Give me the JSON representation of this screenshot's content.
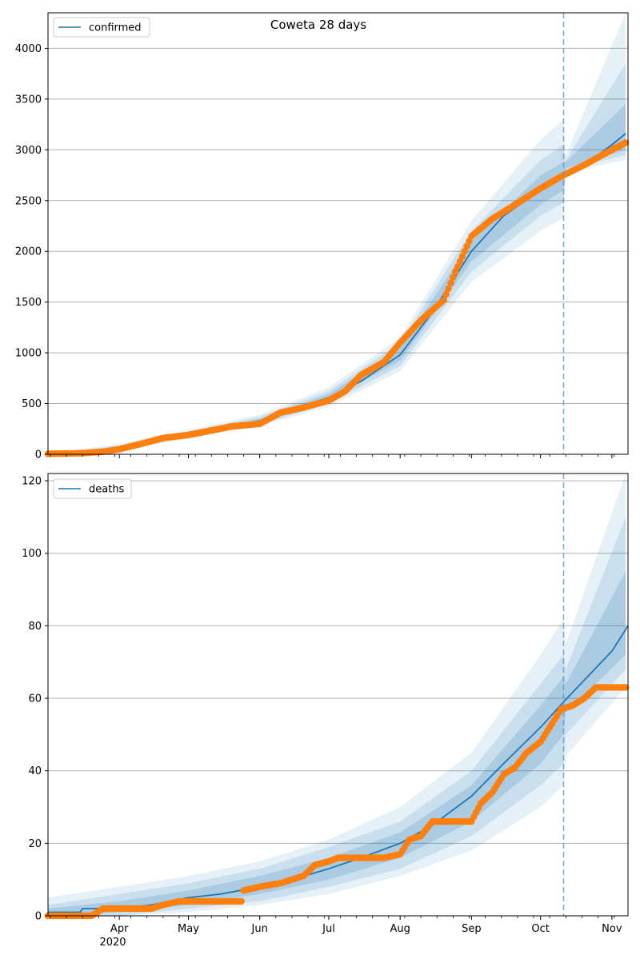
{
  "chart_data": [
    {
      "type": "line",
      "title": "Coweta 28 days",
      "xlabel": "",
      "ylabel": "",
      "ylim": [
        0,
        4350
      ],
      "yticks": [
        0,
        500,
        1000,
        1500,
        2000,
        2500,
        3000,
        3500,
        4000
      ],
      "grid": "y",
      "legend_position": "top-left",
      "legend": [
        "confirmed"
      ],
      "forecast_start": "2020-10-11",
      "series": [
        {
          "name": "confirmed",
          "kind": "model-line",
          "color": "#1f77b4",
          "points": [
            [
              "2020-03-01",
              0
            ],
            [
              "2020-03-20",
              15
            ],
            [
              "2020-04-01",
              60
            ],
            [
              "2020-04-15",
              140
            ],
            [
              "2020-05-01",
              195
            ],
            [
              "2020-05-15",
              260
            ],
            [
              "2020-06-01",
              330
            ],
            [
              "2020-06-15",
              440
            ],
            [
              "2020-07-01",
              560
            ],
            [
              "2020-07-15",
              720
            ],
            [
              "2020-08-01",
              980
            ],
            [
              "2020-08-15",
              1400
            ],
            [
              "2020-09-01",
              2000
            ],
            [
              "2020-09-15",
              2350
            ],
            [
              "2020-10-01",
              2600
            ],
            [
              "2020-10-11",
              2740
            ],
            [
              "2020-10-20",
              2850
            ],
            [
              "2020-11-01",
              3050
            ],
            [
              "2020-11-07",
              3160
            ]
          ]
        },
        {
          "name": "",
          "kind": "observed-dots",
          "color": "#ff7f0e",
          "points": [
            [
              "2020-03-01",
              5
            ],
            [
              "2020-03-15",
              10
            ],
            [
              "2020-03-25",
              25
            ],
            [
              "2020-04-01",
              50
            ],
            [
              "2020-04-10",
              100
            ],
            [
              "2020-04-20",
              160
            ],
            [
              "2020-05-01",
              190
            ],
            [
              "2020-05-10",
              230
            ],
            [
              "2020-05-20",
              275
            ],
            [
              "2020-06-01",
              300
            ],
            [
              "2020-06-10",
              410
            ],
            [
              "2020-06-20",
              460
            ],
            [
              "2020-07-01",
              530
            ],
            [
              "2020-07-08",
              620
            ],
            [
              "2020-07-15",
              780
            ],
            [
              "2020-07-25",
              910
            ],
            [
              "2020-08-01",
              1100
            ],
            [
              "2020-08-10",
              1320
            ],
            [
              "2020-08-20",
              1520
            ],
            [
              "2020-08-25",
              1800
            ],
            [
              "2020-09-01",
              2150
            ],
            [
              "2020-09-10",
              2320
            ],
            [
              "2020-09-20",
              2460
            ],
            [
              "2020-10-01",
              2620
            ],
            [
              "2020-10-11",
              2750
            ],
            [
              "2020-10-20",
              2850
            ],
            [
              "2020-11-01",
              3000
            ],
            [
              "2020-11-07",
              3070
            ]
          ]
        }
      ],
      "bands": [
        {
          "lower": [
            [
              "2020-03-01",
              0
            ],
            [
              "2020-04-01",
              30
            ],
            [
              "2020-05-01",
              160
            ],
            [
              "2020-06-01",
              280
            ],
            [
              "2020-07-01",
              470
            ],
            [
              "2020-08-01",
              820
            ],
            [
              "2020-09-01",
              1700
            ],
            [
              "2020-10-01",
              2200
            ],
            [
              "2020-10-11",
              2330
            ],
            [
              "2020-10-12",
              2780
            ],
            [
              "2020-11-07",
              2900
            ]
          ],
          "upper": [
            [
              "2020-03-01",
              10
            ],
            [
              "2020-04-01",
              100
            ],
            [
              "2020-05-01",
              240
            ],
            [
              "2020-06-01",
              390
            ],
            [
              "2020-07-01",
              660
            ],
            [
              "2020-08-01",
              1150
            ],
            [
              "2020-09-01",
              2300
            ],
            [
              "2020-10-01",
              3100
            ],
            [
              "2020-10-11",
              3300
            ],
            [
              "2020-10-12",
              2950
            ],
            [
              "2020-11-07",
              4350
            ]
          ]
        },
        {
          "lower": [
            [
              "2020-03-01",
              0
            ],
            [
              "2020-04-01",
              40
            ],
            [
              "2020-05-01",
              170
            ],
            [
              "2020-06-01",
              295
            ],
            [
              "2020-07-01",
              500
            ],
            [
              "2020-08-01",
              870
            ],
            [
              "2020-09-01",
              1800
            ],
            [
              "2020-10-01",
              2350
            ],
            [
              "2020-10-11",
              2480
            ],
            [
              "2020-10-12",
              2800
            ],
            [
              "2020-11-07",
              2950
            ]
          ],
          "upper": [
            [
              "2020-03-01",
              6
            ],
            [
              "2020-04-01",
              85
            ],
            [
              "2020-05-01",
              225
            ],
            [
              "2020-06-01",
              370
            ],
            [
              "2020-07-01",
              625
            ],
            [
              "2020-08-01",
              1100
            ],
            [
              "2020-09-01",
              2200
            ],
            [
              "2020-10-01",
              2900
            ],
            [
              "2020-10-11",
              3050
            ],
            [
              "2020-10-12",
              2900
            ],
            [
              "2020-11-07",
              3850
            ]
          ]
        },
        {
          "lower": [
            [
              "2020-03-01",
              0
            ],
            [
              "2020-04-01",
              48
            ],
            [
              "2020-05-01",
              180
            ],
            [
              "2020-06-01",
              310
            ],
            [
              "2020-07-01",
              530
            ],
            [
              "2020-08-01",
              920
            ],
            [
              "2020-09-01",
              1900
            ],
            [
              "2020-10-01",
              2460
            ],
            [
              "2020-10-11",
              2600
            ],
            [
              "2020-10-12",
              2820
            ],
            [
              "2020-11-07",
              3000
            ]
          ],
          "upper": [
            [
              "2020-03-01",
              3
            ],
            [
              "2020-04-01",
              72
            ],
            [
              "2020-05-01",
              210
            ],
            [
              "2020-06-01",
              350
            ],
            [
              "2020-07-01",
              595
            ],
            [
              "2020-08-01",
              1050
            ],
            [
              "2020-09-01",
              2100
            ],
            [
              "2020-10-01",
              2750
            ],
            [
              "2020-10-11",
              2880
            ],
            [
              "2020-10-12",
              2880
            ],
            [
              "2020-11-07",
              3450
            ]
          ]
        }
      ]
    },
    {
      "type": "line",
      "title": "",
      "xlabel": "",
      "ylabel": "",
      "ylim": [
        0,
        122
      ],
      "yticks": [
        0,
        20,
        40,
        60,
        80,
        100,
        120
      ],
      "x_tick_labels": [
        "Apr",
        "May",
        "Jun",
        "Jul",
        "Aug",
        "Sep",
        "Oct",
        "Nov"
      ],
      "x_tick_dates": [
        "2020-04-01",
        "2020-05-01",
        "2020-06-01",
        "2020-07-01",
        "2020-08-01",
        "2020-09-01",
        "2020-10-01",
        "2020-11-01"
      ],
      "x_year_label": "2020",
      "xlim": [
        "2020-03-01",
        "2020-11-08"
      ],
      "grid": "y",
      "legend_position": "top-left",
      "legend": [
        "deaths"
      ],
      "forecast_start": "2020-10-11",
      "series": [
        {
          "name": "deaths",
          "kind": "model-line",
          "color": "#1f77b4",
          "points": [
            [
              "2020-03-01",
              1
            ],
            [
              "2020-03-15",
              1
            ],
            [
              "2020-03-16",
              2
            ],
            [
              "2020-04-01",
              2
            ],
            [
              "2020-04-15",
              3
            ],
            [
              "2020-05-01",
              5
            ],
            [
              "2020-05-15",
              6
            ],
            [
              "2020-06-01",
              8
            ],
            [
              "2020-06-15",
              10
            ],
            [
              "2020-07-01",
              13
            ],
            [
              "2020-07-15",
              16
            ],
            [
              "2020-08-01",
              20
            ],
            [
              "2020-08-15",
              25
            ],
            [
              "2020-09-01",
              33
            ],
            [
              "2020-09-15",
              42
            ],
            [
              "2020-10-01",
              52
            ],
            [
              "2020-10-11",
              59
            ],
            [
              "2020-10-20",
              65
            ],
            [
              "2020-11-01",
              73
            ],
            [
              "2020-11-08",
              80
            ]
          ]
        },
        {
          "name": "",
          "kind": "observed-dots",
          "color": "#ff7f0e",
          "points": [
            [
              "2020-03-01",
              0
            ],
            [
              "2020-03-20",
              0
            ],
            [
              "2020-03-25",
              2
            ],
            [
              "2020-04-15",
              2
            ],
            [
              "2020-04-20",
              3
            ],
            [
              "2020-04-27",
              4
            ],
            [
              "2020-05-24",
              4
            ],
            [
              "2020-05-25",
              7
            ],
            [
              "2020-06-01",
              8
            ],
            [
              "2020-06-10",
              9
            ],
            [
              "2020-06-20",
              11
            ],
            [
              "2020-06-25",
              14
            ],
            [
              "2020-07-01",
              15
            ],
            [
              "2020-07-05",
              16
            ],
            [
              "2020-07-25",
              16
            ],
            [
              "2020-08-01",
              17
            ],
            [
              "2020-08-05",
              21
            ],
            [
              "2020-08-10",
              22
            ],
            [
              "2020-08-15",
              26
            ],
            [
              "2020-09-01",
              26
            ],
            [
              "2020-09-05",
              31
            ],
            [
              "2020-09-10",
              34
            ],
            [
              "2020-09-15",
              39
            ],
            [
              "2020-09-20",
              41
            ],
            [
              "2020-09-25",
              45
            ],
            [
              "2020-10-01",
              48
            ],
            [
              "2020-10-05",
              52
            ],
            [
              "2020-10-10",
              57
            ],
            [
              "2020-10-15",
              58
            ],
            [
              "2020-10-20",
              60
            ],
            [
              "2020-10-25",
              63
            ],
            [
              "2020-11-07",
              63
            ]
          ]
        }
      ],
      "bands": [
        {
          "lower": [
            [
              "2020-03-01",
              0
            ],
            [
              "2020-04-01",
              0
            ],
            [
              "2020-05-01",
              1
            ],
            [
              "2020-06-01",
              3
            ],
            [
              "2020-07-01",
              6
            ],
            [
              "2020-08-01",
              11
            ],
            [
              "2020-09-01",
              18
            ],
            [
              "2020-10-01",
              30
            ],
            [
              "2020-10-11",
              36
            ],
            [
              "2020-10-12",
              44
            ],
            [
              "2020-11-07",
              63
            ]
          ],
          "upper": [
            [
              "2020-03-01",
              5
            ],
            [
              "2020-04-01",
              8
            ],
            [
              "2020-05-01",
              11
            ],
            [
              "2020-06-01",
              15
            ],
            [
              "2020-07-01",
              21
            ],
            [
              "2020-08-01",
              30
            ],
            [
              "2020-09-01",
              45
            ],
            [
              "2020-10-01",
              72
            ],
            [
              "2020-10-11",
              82
            ],
            [
              "2020-10-12",
              75
            ],
            [
              "2020-11-07",
              122
            ]
          ]
        },
        {
          "lower": [
            [
              "2020-03-01",
              0
            ],
            [
              "2020-04-01",
              0
            ],
            [
              "2020-05-01",
              2
            ],
            [
              "2020-06-01",
              4
            ],
            [
              "2020-07-01",
              8
            ],
            [
              "2020-08-01",
              13
            ],
            [
              "2020-09-01",
              22
            ],
            [
              "2020-10-01",
              36
            ],
            [
              "2020-10-11",
              42
            ],
            [
              "2020-10-12",
              50
            ],
            [
              "2020-11-07",
              68
            ]
          ],
          "upper": [
            [
              "2020-03-01",
              3
            ],
            [
              "2020-04-01",
              6
            ],
            [
              "2020-05-01",
              9
            ],
            [
              "2020-06-01",
              13
            ],
            [
              "2020-07-01",
              19
            ],
            [
              "2020-08-01",
              26
            ],
            [
              "2020-09-01",
              40
            ],
            [
              "2020-10-01",
              64
            ],
            [
              "2020-10-11",
              72
            ],
            [
              "2020-10-12",
              68
            ],
            [
              "2020-11-07",
              110
            ]
          ]
        },
        {
          "lower": [
            [
              "2020-03-01",
              0
            ],
            [
              "2020-04-01",
              1
            ],
            [
              "2020-05-01",
              3
            ],
            [
              "2020-06-01",
              6
            ],
            [
              "2020-07-01",
              10
            ],
            [
              "2020-08-01",
              16
            ],
            [
              "2020-09-01",
              26
            ],
            [
              "2020-10-01",
              42
            ],
            [
              "2020-10-11",
              50
            ],
            [
              "2020-10-12",
              56
            ],
            [
              "2020-11-07",
              72
            ]
          ],
          "upper": [
            [
              "2020-03-01",
              2
            ],
            [
              "2020-04-01",
              4
            ],
            [
              "2020-05-01",
              7
            ],
            [
              "2020-06-01",
              11
            ],
            [
              "2020-07-01",
              16
            ],
            [
              "2020-08-01",
              23
            ],
            [
              "2020-09-01",
              36
            ],
            [
              "2020-10-01",
              58
            ],
            [
              "2020-10-11",
              66
            ],
            [
              "2020-10-12",
              64
            ],
            [
              "2020-11-07",
              95
            ]
          ]
        }
      ]
    }
  ]
}
